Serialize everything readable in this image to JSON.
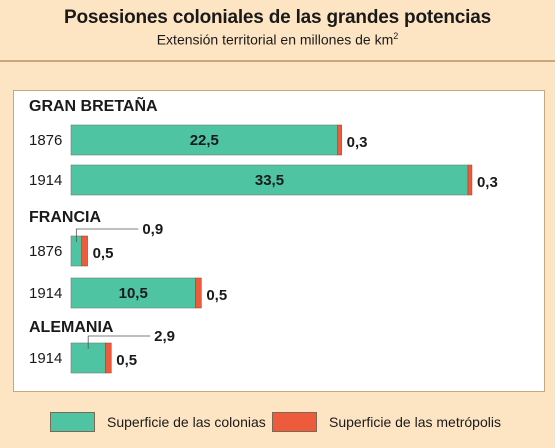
{
  "header": {
    "title": "Posesiones coloniales de las grandes potencias",
    "subtitle": "Extensión territorial en millones de km",
    "subtitle_sup": "2"
  },
  "colors": {
    "colonias": "#4ec4a3",
    "metropolis": "#ee5a3c",
    "panel_bg": "#ffffff",
    "page_bg": "#fde5c4"
  },
  "legend": {
    "colonias": "Superficie de las colonias",
    "metropolis": "Superficie de las metrópolis"
  },
  "chart_data": {
    "type": "bar",
    "orientation": "horizontal",
    "stacked": true,
    "series_names": [
      "Superficie de las colonias",
      "Superficie de las metrópolis"
    ],
    "groups": [
      {
        "country": "GRAN BRETAÑA",
        "rows": [
          {
            "year": "1876",
            "colonias": 22.5,
            "colonias_label": "22,5",
            "metropolis": 0.3,
            "metropolis_label": "0,3"
          },
          {
            "year": "1914",
            "colonias": 33.5,
            "colonias_label": "33,5",
            "metropolis": 0.3,
            "metropolis_label": "0,3"
          }
        ]
      },
      {
        "country": "FRANCIA",
        "rows": [
          {
            "year": "1876",
            "colonias": 0.9,
            "colonias_label": "0,9",
            "metropolis": 0.5,
            "metropolis_label": "0,5"
          },
          {
            "year": "1914",
            "colonias": 10.5,
            "colonias_label": "10,5",
            "metropolis": 0.5,
            "metropolis_label": "0,5"
          }
        ]
      },
      {
        "country": "ALEMANIA",
        "rows": [
          {
            "year": "1914",
            "colonias": 2.9,
            "colonias_label": "2,9",
            "metropolis": 0.5,
            "metropolis_label": "0,5"
          }
        ]
      }
    ]
  }
}
